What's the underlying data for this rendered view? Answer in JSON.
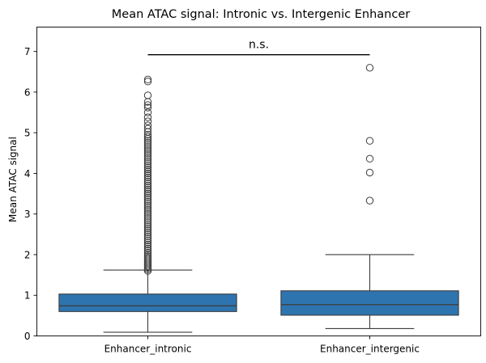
{
  "chart_data": {
    "type": "box",
    "title": "Mean ATAC signal: Intronic vs. Intergenic Enhancer",
    "xlabel": "",
    "ylabel": "Mean ATAC signal",
    "ylim": [
      0,
      7.6
    ],
    "yticks": [
      "0",
      "1",
      "2",
      "3",
      "4",
      "5",
      "6",
      "7"
    ],
    "grid": false,
    "color": "#2e75b0",
    "categories": [
      "Enhancer_intronic",
      "Enhancer_intergenic"
    ],
    "boxes": [
      {
        "category": "Enhancer_intronic",
        "whisker_low": 0.09,
        "q1": 0.6,
        "median": 0.74,
        "q3": 1.03,
        "whisker_high": 1.62,
        "outliers": [
          1.6,
          1.64,
          1.68,
          1.72,
          1.76,
          1.8,
          1.84,
          1.88,
          1.92,
          1.96,
          2.0,
          2.05,
          2.1,
          2.15,
          2.2,
          2.25,
          2.3,
          2.35,
          2.4,
          2.45,
          2.5,
          2.55,
          2.6,
          2.65,
          2.7,
          2.75,
          2.8,
          2.85,
          2.9,
          2.95,
          3.0,
          3.05,
          3.1,
          3.15,
          3.2,
          3.25,
          3.3,
          3.35,
          3.4,
          3.45,
          3.5,
          3.55,
          3.6,
          3.65,
          3.7,
          3.75,
          3.8,
          3.85,
          3.9,
          3.95,
          4.0,
          4.05,
          4.1,
          4.15,
          4.2,
          4.25,
          4.3,
          4.35,
          4.4,
          4.45,
          4.5,
          4.55,
          4.6,
          4.65,
          4.7,
          4.75,
          4.8,
          4.85,
          4.9,
          4.95,
          5.02,
          5.1,
          5.18,
          5.28,
          5.38,
          5.5,
          5.62,
          5.68,
          5.76,
          5.92,
          6.26,
          6.31
        ]
      },
      {
        "category": "Enhancer_intergenic",
        "whisker_low": 0.18,
        "q1": 0.51,
        "median": 0.77,
        "q3": 1.11,
        "whisker_high": 2.0,
        "outliers": [
          3.33,
          4.02,
          4.36,
          4.8,
          6.6
        ]
      }
    ],
    "annotation": {
      "text": "n.s.",
      "y": 6.92
    }
  }
}
